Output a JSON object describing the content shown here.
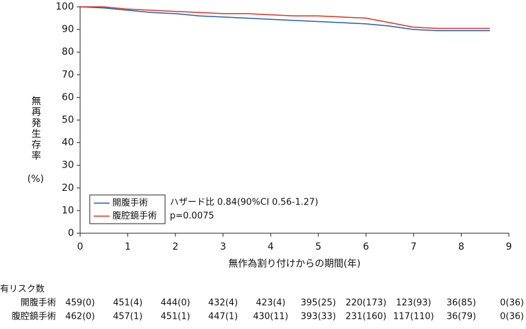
{
  "chart_data": {
    "type": "line",
    "y_label": "無再発生存率",
    "y_unit": "(%)",
    "x_label": "無作為割り付けからの期間(年)",
    "xlim": [
      0,
      9
    ],
    "xticks": [
      0,
      1,
      2,
      3,
      4,
      5,
      6,
      7,
      8,
      9
    ],
    "ylim": [
      0,
      100
    ],
    "yticks": [
      0,
      10,
      20,
      30,
      40,
      50,
      60,
      70,
      80,
      90,
      100
    ],
    "series": [
      {
        "name": "開腹手術",
        "color": "#1f5fb4",
        "x": [
          0,
          0.5,
          1,
          1.5,
          2,
          2.5,
          3,
          3.5,
          4,
          4.5,
          5,
          5.5,
          6,
          6.5,
          7,
          7.5,
          8,
          8.6
        ],
        "values": [
          100,
          99.5,
          98.5,
          97.5,
          97,
          96,
          95.5,
          95,
          94.5,
          94,
          93.5,
          93,
          92.5,
          91.5,
          90,
          89.5,
          89.5,
          89.5
        ]
      },
      {
        "name": "腹腔鏡手術",
        "color": "#e0301e",
        "x": [
          0,
          0.5,
          1,
          1.5,
          2,
          2.5,
          3,
          3.5,
          4,
          4.5,
          5,
          5.5,
          6,
          6.5,
          7,
          7.5,
          8,
          8.6
        ],
        "values": [
          100,
          100,
          99,
          98.5,
          98,
          97.5,
          97,
          97,
          96.5,
          96,
          96,
          95.5,
          95,
          93,
          91,
          90.5,
          90.5,
          90.5
        ]
      }
    ],
    "annotations": [
      "ハザード比 0.84(90%CI 0.56-1.27)",
      "p=0.0075"
    ]
  },
  "risk_table": {
    "title": "有リスク数",
    "rows": [
      {
        "label": "開腹手術",
        "values": [
          "459(0)",
          "451(4)",
          "444(0)",
          "432(4)",
          "423(4)",
          "395(25)",
          "220(173)",
          "123(93)",
          "36(85)",
          "0(36)"
        ]
      },
      {
        "label": "腹腔鏡手術",
        "values": [
          "462(0)",
          "457(1)",
          "451(1)",
          "447(1)",
          "430(11)",
          "393(33)",
          "231(160)",
          "117(110)",
          "36(79)",
          "0(36)"
        ]
      }
    ]
  }
}
